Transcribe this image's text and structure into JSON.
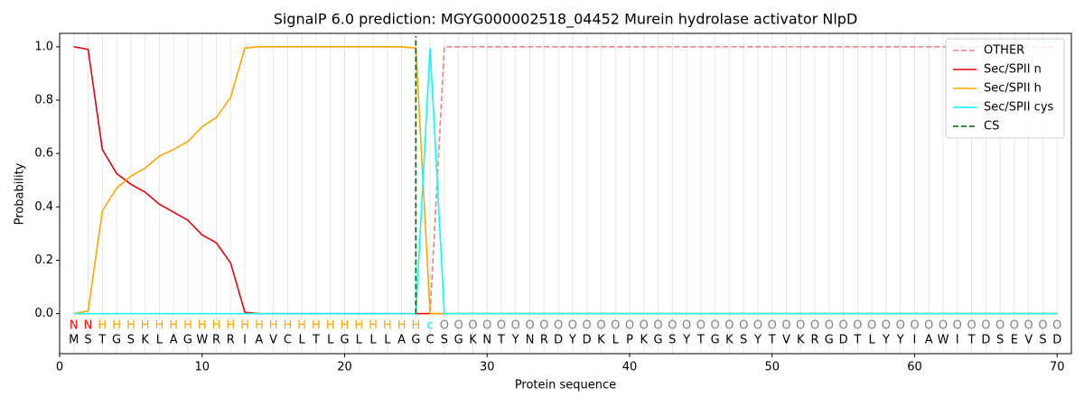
{
  "chart_data": {
    "type": "line",
    "title": "SignalP 6.0 prediction: MGYG000002518_04452 Murein hydrolase activator NlpD",
    "x_label": "Protein sequence",
    "y_label": "Probability",
    "x": [
      1,
      2,
      3,
      4,
      5,
      6,
      7,
      8,
      9,
      10,
      11,
      12,
      13,
      14,
      15,
      16,
      17,
      18,
      19,
      20,
      21,
      22,
      23,
      24,
      25,
      26,
      27,
      28,
      29,
      30,
      31,
      32,
      33,
      34,
      35,
      36,
      37,
      38,
      39,
      40,
      41,
      42,
      43,
      44,
      45,
      46,
      47,
      48,
      49,
      50,
      51,
      52,
      53,
      54,
      55,
      56,
      57,
      58,
      59,
      60,
      61,
      62,
      63,
      64,
      65,
      66,
      67,
      68,
      69,
      70
    ],
    "sequence": [
      "M",
      "S",
      "T",
      "G",
      "S",
      "K",
      "L",
      "A",
      "G",
      "W",
      "R",
      "R",
      "I",
      "A",
      "V",
      "C",
      "L",
      "T",
      "L",
      "G",
      "L",
      "L",
      "L",
      "A",
      "G",
      "C",
      "S",
      "G",
      "K",
      "N",
      "T",
      "Y",
      "N",
      "R",
      "D",
      "Y",
      "D",
      "K",
      "L",
      "P",
      "K",
      "G",
      "S",
      "Y",
      "T",
      "G",
      "K",
      "S",
      "Y",
      "T",
      "V",
      "K",
      "R",
      "G",
      "D",
      "T",
      "L",
      "Y",
      "Y",
      "I",
      "A",
      "W",
      "I",
      "T",
      "D",
      "S",
      "E",
      "V",
      "S",
      "D"
    ],
    "residue_labels": [
      "N",
      "N",
      "H",
      "H",
      "H",
      "H",
      "H",
      "H",
      "H",
      "H",
      "H",
      "H",
      "H",
      "H",
      "H",
      "H",
      "H",
      "H",
      "H",
      "H",
      "H",
      "H",
      "H",
      "H",
      "H",
      "c",
      "O",
      "O",
      "O",
      "O",
      "O",
      "O",
      "O",
      "O",
      "O",
      "O",
      "O",
      "O",
      "O",
      "O",
      "O",
      "O",
      "O",
      "O",
      "O",
      "O",
      "O",
      "O",
      "O",
      "O",
      "O",
      "O",
      "O",
      "O",
      "O",
      "O",
      "O",
      "O",
      "O",
      "O",
      "O",
      "O",
      "O",
      "O",
      "O",
      "O",
      "O",
      "O",
      "O",
      "O"
    ],
    "label_colors": {
      "N": "#ff0000",
      "H": "#ffa500",
      "c": "#00e5ee",
      "O": "#808080"
    },
    "series": [
      {
        "name": "OTHER",
        "color": "#f08080",
        "dashed": true,
        "values": [
          0,
          0,
          0,
          0,
          0,
          0,
          0,
          0,
          0,
          0,
          0,
          0,
          0,
          0,
          0,
          0,
          0,
          0,
          0,
          0,
          0,
          0,
          0,
          0,
          0,
          0,
          1,
          1,
          1,
          1,
          1,
          1,
          1,
          1,
          1,
          1,
          1,
          1,
          1,
          1,
          1,
          1,
          1,
          1,
          1,
          1,
          1,
          1,
          1,
          1,
          1,
          1,
          1,
          1,
          1,
          1,
          1,
          1,
          1,
          1,
          1,
          1,
          1,
          1,
          1,
          1,
          1,
          1,
          1,
          1
        ]
      },
      {
        "name": "Sec/SPII n",
        "color": "#e8000b",
        "values": [
          1,
          0.99,
          0.615,
          0.525,
          0.485,
          0.455,
          0.41,
          0.38,
          0.35,
          0.295,
          0.265,
          0.19,
          0.005,
          0,
          0,
          0,
          0,
          0,
          0,
          0,
          0,
          0,
          0,
          0,
          0,
          0,
          0,
          0,
          0,
          0,
          0,
          0,
          0,
          0,
          0,
          0,
          0,
          0,
          0,
          0,
          0,
          0,
          0,
          0,
          0,
          0,
          0,
          0,
          0,
          0,
          0,
          0,
          0,
          0,
          0,
          0,
          0,
          0,
          0,
          0,
          0,
          0,
          0,
          0,
          0,
          0,
          0,
          0,
          0,
          0
        ]
      },
      {
        "name": "Sec/SPII h",
        "color": "#ffa500",
        "values": [
          0,
          0.01,
          0.385,
          0.47,
          0.515,
          0.545,
          0.59,
          0.615,
          0.645,
          0.7,
          0.735,
          0.81,
          0.995,
          1,
          1,
          1,
          1,
          1,
          1,
          1,
          1,
          1,
          1,
          1,
          0.995,
          0,
          0,
          0,
          0,
          0,
          0,
          0,
          0,
          0,
          0,
          0,
          0,
          0,
          0,
          0,
          0,
          0,
          0,
          0,
          0,
          0,
          0,
          0,
          0,
          0,
          0,
          0,
          0,
          0,
          0,
          0,
          0,
          0,
          0,
          0,
          0,
          0,
          0,
          0,
          0,
          0,
          0,
          0,
          0,
          0
        ]
      },
      {
        "name": "Sec/SPII cys",
        "color": "#00ffff",
        "values": [
          0,
          0,
          0,
          0,
          0,
          0,
          0,
          0,
          0,
          0,
          0,
          0,
          0,
          0,
          0,
          0,
          0,
          0,
          0,
          0,
          0,
          0,
          0,
          0,
          0,
          0.995,
          0,
          0,
          0,
          0,
          0,
          0,
          0,
          0,
          0,
          0,
          0,
          0,
          0,
          0,
          0,
          0,
          0,
          0,
          0,
          0,
          0,
          0,
          0,
          0,
          0,
          0,
          0,
          0,
          0,
          0,
          0,
          0,
          0,
          0,
          0,
          0,
          0,
          0,
          0,
          0,
          0,
          0,
          0,
          0
        ]
      }
    ],
    "cs": {
      "name": "CS",
      "color": "#006400",
      "x": 25
    },
    "xlim": [
      0,
      71
    ],
    "xticks": [
      0,
      10,
      20,
      30,
      40,
      50,
      60,
      70
    ],
    "ylim": [
      -0.15,
      1.05
    ],
    "yticks": [
      {
        "value": 0,
        "label": "0.0"
      },
      0.2,
      0.4,
      0.6,
      0.8,
      {
        "value": 1,
        "label": "1.0"
      }
    ],
    "grid": true,
    "legend": "upper right"
  }
}
